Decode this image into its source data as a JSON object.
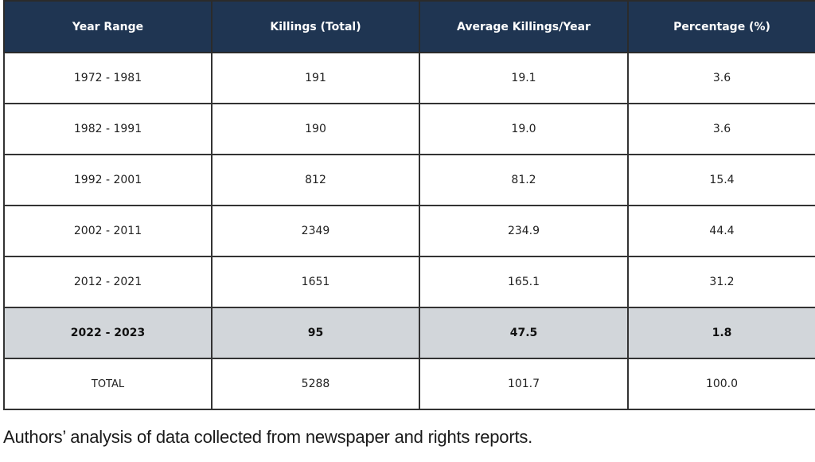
{
  "chart_data": {
    "type": "table",
    "columns": [
      "Year Range",
      "Killings (Total)",
      "Average Killings/Year",
      "Percentage (%)"
    ],
    "rows": [
      [
        "1972 - 1981",
        "191",
        "19.1",
        "3.6"
      ],
      [
        "1982 - 1991",
        "190",
        "19.0",
        "3.6"
      ],
      [
        "1992 - 2001",
        "812",
        "81.2",
        "15.4"
      ],
      [
        "2002 - 2011",
        "2349",
        "234.9",
        "44.4"
      ],
      [
        "2012 - 2021",
        "1651",
        "165.1",
        "31.2"
      ],
      [
        "2022 - 2023",
        "95",
        "47.5",
        "1.8"
      ],
      [
        "TOTAL",
        "5288",
        "101.7",
        "100.0"
      ]
    ],
    "highlighted_row": "2022 - 2023",
    "caption": "Authors’ analysis of  data collected from newspaper and rights reports."
  },
  "colors": {
    "header_background": "#1f3552",
    "header_text": "#ffffff",
    "highlight_background": "#d2d6da",
    "border": "#333333"
  }
}
